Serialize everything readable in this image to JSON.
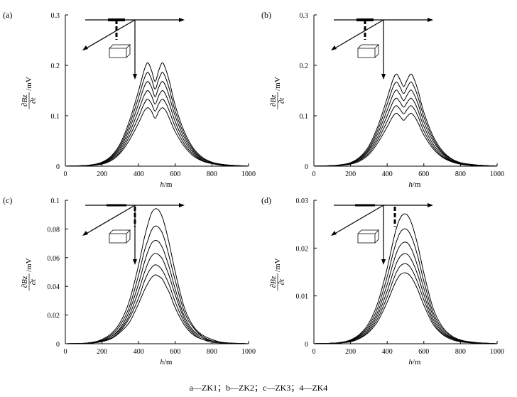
{
  "caption": "a—ZK1；b—ZK2；c—ZK3；4—ZK4",
  "chart_data": [
    {
      "type": "line",
      "panel_label": "(a)",
      "xlabel": "h/m",
      "ylabel": "∂Bz/∂t /mV",
      "xlim": [
        0,
        1000
      ],
      "ylim": [
        0,
        0.3
      ],
      "xticks": [
        "0",
        "200",
        "400",
        "600",
        "800",
        "1000"
      ],
      "yticks": [
        "0",
        "0.1",
        "0.2",
        "0.3"
      ],
      "x": [
        0,
        100,
        150,
        200,
        250,
        300,
        350,
        400,
        430,
        450,
        470,
        490,
        510,
        530,
        550,
        570,
        600,
        650,
        700,
        750,
        800,
        850,
        900,
        1000
      ],
      "series": [
        {
          "values": [
            0,
            0.001,
            0.003,
            0.008,
            0.02,
            0.045,
            0.09,
            0.15,
            0.19,
            0.205,
            0.19,
            0.168,
            0.19,
            0.205,
            0.19,
            0.165,
            0.12,
            0.068,
            0.035,
            0.017,
            0.008,
            0.004,
            0.002,
            0
          ]
        },
        {
          "values": [
            0,
            0.001,
            0.003,
            0.007,
            0.018,
            0.041,
            0.082,
            0.137,
            0.173,
            0.186,
            0.173,
            0.153,
            0.173,
            0.186,
            0.173,
            0.15,
            0.109,
            0.062,
            0.032,
            0.015,
            0.007,
            0.004,
            0.002,
            0
          ]
        },
        {
          "values": [
            0,
            0.001,
            0.003,
            0.006,
            0.016,
            0.037,
            0.074,
            0.124,
            0.157,
            0.168,
            0.157,
            0.138,
            0.157,
            0.168,
            0.157,
            0.135,
            0.099,
            0.056,
            0.029,
            0.014,
            0.007,
            0.003,
            0.002,
            0
          ]
        },
        {
          "values": [
            0,
            0.001,
            0.002,
            0.006,
            0.015,
            0.033,
            0.066,
            0.111,
            0.14,
            0.15,
            0.14,
            0.123,
            0.14,
            0.15,
            0.14,
            0.121,
            0.088,
            0.05,
            0.026,
            0.012,
            0.006,
            0.003,
            0.001,
            0
          ]
        },
        {
          "values": [
            0,
            0.001,
            0.002,
            0.005,
            0.013,
            0.029,
            0.059,
            0.098,
            0.124,
            0.133,
            0.124,
            0.109,
            0.124,
            0.133,
            0.124,
            0.107,
            0.078,
            0.044,
            0.023,
            0.011,
            0.005,
            0.003,
            0.001,
            0
          ]
        },
        {
          "values": [
            0,
            0.001,
            0.002,
            0.004,
            0.011,
            0.026,
            0.052,
            0.086,
            0.109,
            0.116,
            0.109,
            0.095,
            0.109,
            0.116,
            0.109,
            0.093,
            0.068,
            0.039,
            0.02,
            0.01,
            0.005,
            0.002,
            0.001,
            0
          ]
        }
      ],
      "inset_probe": "parallel"
    },
    {
      "type": "line",
      "panel_label": "(b)",
      "xlabel": "h/m",
      "ylabel": "∂Bz/∂t /mV",
      "xlim": [
        0,
        1000
      ],
      "ylim": [
        0,
        0.3
      ],
      "xticks": [
        "0",
        "200",
        "400",
        "600",
        "800",
        "1000"
      ],
      "yticks": [
        "0",
        "0.1",
        "0.2",
        "0.3"
      ],
      "x": [
        0,
        100,
        150,
        200,
        250,
        300,
        350,
        400,
        430,
        450,
        470,
        490,
        510,
        530,
        550,
        570,
        600,
        650,
        700,
        750,
        800,
        850,
        900,
        1000
      ],
      "series": [
        {
          "values": [
            0,
            0.001,
            0.003,
            0.007,
            0.018,
            0.04,
            0.08,
            0.135,
            0.17,
            0.183,
            0.172,
            0.158,
            0.172,
            0.183,
            0.17,
            0.148,
            0.107,
            0.06,
            0.031,
            0.015,
            0.007,
            0.004,
            0.002,
            0
          ]
        },
        {
          "values": [
            0,
            0.001,
            0.003,
            0.006,
            0.016,
            0.036,
            0.073,
            0.123,
            0.155,
            0.167,
            0.157,
            0.144,
            0.157,
            0.167,
            0.155,
            0.135,
            0.098,
            0.055,
            0.028,
            0.014,
            0.006,
            0.004,
            0.002,
            0
          ]
        },
        {
          "values": [
            0,
            0.001,
            0.002,
            0.006,
            0.015,
            0.033,
            0.066,
            0.111,
            0.14,
            0.151,
            0.142,
            0.13,
            0.142,
            0.151,
            0.14,
            0.122,
            0.088,
            0.05,
            0.026,
            0.012,
            0.006,
            0.003,
            0.002,
            0
          ]
        },
        {
          "values": [
            0,
            0.001,
            0.002,
            0.005,
            0.013,
            0.03,
            0.059,
            0.1,
            0.126,
            0.135,
            0.127,
            0.117,
            0.127,
            0.135,
            0.126,
            0.109,
            0.079,
            0.044,
            0.023,
            0.011,
            0.005,
            0.003,
            0.001,
            0
          ]
        },
        {
          "values": [
            0,
            0.001,
            0.002,
            0.005,
            0.012,
            0.026,
            0.053,
            0.089,
            0.112,
            0.12,
            0.113,
            0.104,
            0.113,
            0.12,
            0.112,
            0.097,
            0.07,
            0.039,
            0.02,
            0.01,
            0.005,
            0.002,
            0.001,
            0
          ]
        },
        {
          "values": [
            0,
            0.001,
            0.002,
            0.004,
            0.01,
            0.023,
            0.047,
            0.078,
            0.098,
            0.105,
            0.099,
            0.091,
            0.099,
            0.105,
            0.098,
            0.085,
            0.062,
            0.035,
            0.018,
            0.009,
            0.004,
            0.002,
            0.001,
            0
          ]
        }
      ],
      "inset_probe": "parallel"
    },
    {
      "type": "line",
      "panel_label": "(c)",
      "xlabel": "h/m",
      "ylabel": "∂Bz/∂t /mV",
      "xlim": [
        0,
        1000
      ],
      "ylim": [
        0,
        0.1
      ],
      "xticks": [
        "0",
        "200",
        "400",
        "600",
        "800",
        "1000"
      ],
      "yticks": [
        "0",
        "0.02",
        "0.04",
        "0.06",
        "0.08",
        "0.1"
      ],
      "x": [
        0,
        100,
        150,
        200,
        250,
        300,
        350,
        400,
        430,
        450,
        470,
        490,
        510,
        530,
        550,
        570,
        600,
        650,
        700,
        750,
        800,
        850,
        900,
        1000
      ],
      "series": [
        {
          "values": [
            0,
            0.0003,
            0.001,
            0.003,
            0.007,
            0.015,
            0.03,
            0.055,
            0.073,
            0.083,
            0.091,
            0.094,
            0.093,
            0.088,
            0.079,
            0.068,
            0.05,
            0.025,
            0.012,
            0.006,
            0.003,
            0.001,
            0.0005,
            0
          ]
        },
        {
          "values": [
            0,
            0.0003,
            0.001,
            0.0025,
            0.006,
            0.013,
            0.026,
            0.048,
            0.064,
            0.072,
            0.079,
            0.082,
            0.081,
            0.077,
            0.069,
            0.059,
            0.044,
            0.022,
            0.011,
            0.005,
            0.002,
            0.001,
            0.0004,
            0
          ]
        },
        {
          "values": [
            0,
            0.0002,
            0.001,
            0.002,
            0.005,
            0.011,
            0.023,
            0.042,
            0.056,
            0.064,
            0.07,
            0.072,
            0.071,
            0.067,
            0.06,
            0.052,
            0.038,
            0.019,
            0.009,
            0.005,
            0.002,
            0.001,
            0.0004,
            0
          ]
        },
        {
          "values": [
            0,
            0.0002,
            0.001,
            0.002,
            0.005,
            0.01,
            0.02,
            0.037,
            0.049,
            0.056,
            0.061,
            0.063,
            0.062,
            0.059,
            0.053,
            0.046,
            0.034,
            0.017,
            0.008,
            0.004,
            0.002,
            0.001,
            0.0003,
            0
          ]
        },
        {
          "values": [
            0,
            0.0002,
            0.001,
            0.002,
            0.004,
            0.009,
            0.018,
            0.032,
            0.043,
            0.049,
            0.053,
            0.055,
            0.054,
            0.051,
            0.046,
            0.04,
            0.029,
            0.015,
            0.007,
            0.003,
            0.002,
            0.001,
            0.0003,
            0
          ]
        },
        {
          "values": [
            0,
            0.0002,
            0.0005,
            0.0015,
            0.0035,
            0.008,
            0.015,
            0.028,
            0.037,
            0.042,
            0.046,
            0.048,
            0.047,
            0.045,
            0.04,
            0.035,
            0.025,
            0.013,
            0.006,
            0.003,
            0.001,
            0.0005,
            0.0002,
            0
          ]
        }
      ],
      "inset_probe": "perpendicular"
    },
    {
      "type": "line",
      "panel_label": "(d)",
      "xlabel": "h/m",
      "ylabel": "∂Bz/∂t /mV",
      "xlim": [
        0,
        1000
      ],
      "ylim": [
        0,
        0.03
      ],
      "xticks": [
        "0",
        "200",
        "400",
        "600",
        "800",
        "1000"
      ],
      "yticks": [
        "0",
        "0.01",
        "0.02",
        "0.03"
      ],
      "x": [
        0,
        100,
        150,
        200,
        250,
        300,
        350,
        400,
        430,
        450,
        470,
        490,
        510,
        530,
        550,
        570,
        600,
        650,
        700,
        750,
        800,
        850,
        900,
        1000
      ],
      "series": [
        {
          "values": [
            0,
            0.0001,
            0.0003,
            0.0008,
            0.002,
            0.0043,
            0.0087,
            0.0158,
            0.021,
            0.0241,
            0.0262,
            0.0271,
            0.0269,
            0.0255,
            0.0231,
            0.0201,
            0.0148,
            0.0075,
            0.0036,
            0.0017,
            0.0008,
            0.0004,
            0.0002,
            0
          ]
        },
        {
          "values": [
            0,
            0.0001,
            0.0003,
            0.0007,
            0.0018,
            0.0038,
            0.0077,
            0.014,
            0.0186,
            0.0213,
            0.0232,
            0.024,
            0.0238,
            0.0226,
            0.0205,
            0.0178,
            0.0131,
            0.0066,
            0.0032,
            0.0015,
            0.0007,
            0.0004,
            0.0002,
            0
          ]
        },
        {
          "values": [
            0,
            0.0001,
            0.0002,
            0.0006,
            0.0016,
            0.0034,
            0.0068,
            0.0124,
            0.0165,
            0.0189,
            0.0205,
            0.0212,
            0.0211,
            0.02,
            0.0181,
            0.0157,
            0.0116,
            0.0059,
            0.0028,
            0.0013,
            0.0006,
            0.0003,
            0.0002,
            0
          ]
        },
        {
          "values": [
            0,
            0.0001,
            0.0002,
            0.0006,
            0.0014,
            0.003,
            0.0061,
            0.011,
            0.0146,
            0.0168,
            0.0182,
            0.0188,
            0.0187,
            0.0177,
            0.0161,
            0.014,
            0.0103,
            0.0052,
            0.0025,
            0.0012,
            0.0006,
            0.0003,
            0.0001,
            0
          ]
        },
        {
          "values": [
            0,
            0.0001,
            0.0002,
            0.0005,
            0.0012,
            0.0027,
            0.0054,
            0.0098,
            0.013,
            0.0149,
            0.0162,
            0.0167,
            0.0166,
            0.0158,
            0.0143,
            0.0124,
            0.0092,
            0.0046,
            0.0022,
            0.0011,
            0.0005,
            0.0003,
            0.0001,
            0
          ]
        },
        {
          "values": [
            0,
            0.0001,
            0.0002,
            0.0004,
            0.0011,
            0.0024,
            0.0048,
            0.0087,
            0.0115,
            0.0132,
            0.0144,
            0.0148,
            0.0147,
            0.014,
            0.0127,
            0.011,
            0.0081,
            0.0041,
            0.002,
            0.0009,
            0.0004,
            0.0002,
            0.0001,
            0
          ]
        }
      ],
      "inset_probe": "perpendicular-offset"
    }
  ]
}
